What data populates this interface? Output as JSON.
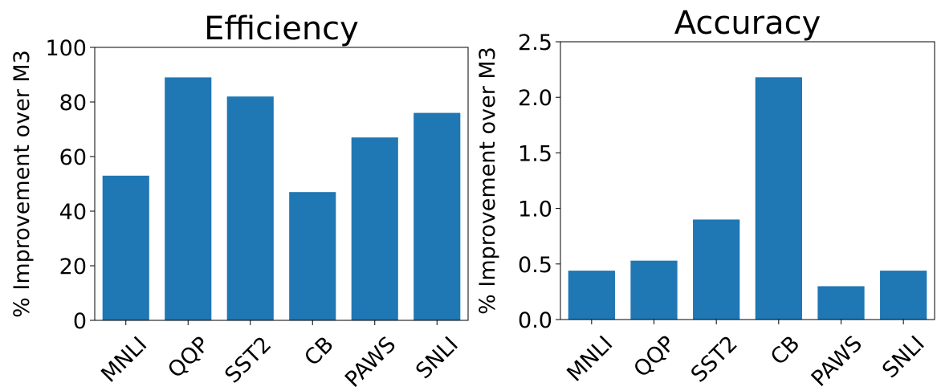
{
  "chart_data": [
    {
      "type": "bar",
      "title": "Efficiency",
      "ylabel": "% Improvement over M3",
      "categories": [
        "MNLI",
        "QQP",
        "SST2",
        "CB",
        "PAWS",
        "SNLI"
      ],
      "values": [
        53,
        89,
        82,
        47,
        67,
        76
      ],
      "color": "#1f77b4",
      "ylim": [
        0,
        100
      ],
      "yticks": [
        0,
        20,
        40,
        60,
        80,
        100
      ]
    },
    {
      "type": "bar",
      "title": "Accuracy",
      "ylabel": "% Improvement over M3",
      "categories": [
        "MNLI",
        "QQP",
        "SST2",
        "CB",
        "PAWS",
        "SNLI"
      ],
      "values": [
        0.44,
        0.53,
        0.9,
        2.18,
        0.3,
        0.44
      ],
      "color": "#1f77b4",
      "ylim": [
        0,
        2.5
      ],
      "yticks": [
        {
          "value": 0,
          "label": "0.0"
        },
        0.5,
        {
          "value": 1,
          "label": "1.0"
        },
        1.5,
        {
          "value": 2,
          "label": "2.0"
        },
        2.5
      ]
    }
  ]
}
